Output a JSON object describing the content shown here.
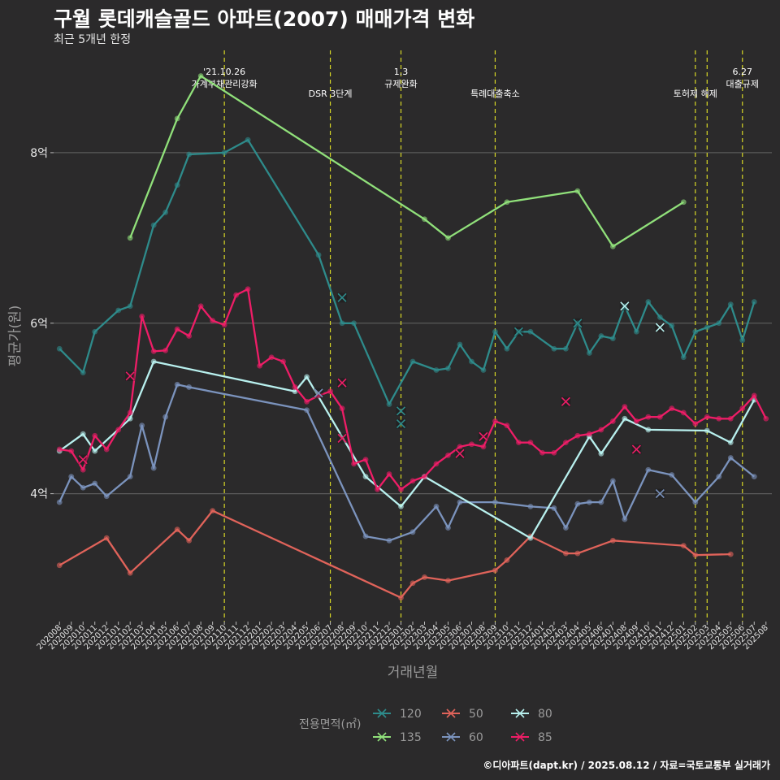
{
  "title": "구월 롯데캐슬골드 아파트(2007) 매매가격 변화",
  "subtitle": "최근 5개년 한정",
  "caption": "©디아파트(dapt.kr) / 2025.08.12 / 자료=국토교통부 실거래가",
  "chart_data": {
    "type": "line",
    "xlabel": "거래년월",
    "ylabel": "평균가(원)",
    "x_months": [
      "202008",
      "202009",
      "202010",
      "202011",
      "202012",
      "202101",
      "202102",
      "202103",
      "202104",
      "202105",
      "202106",
      "202107",
      "202108",
      "202109",
      "202110",
      "202111",
      "202112",
      "202201",
      "202202",
      "202203",
      "202204",
      "202205",
      "202206",
      "202207",
      "202208",
      "202209",
      "202210",
      "202211",
      "202212",
      "202301",
      "202302",
      "202303",
      "202304",
      "202305",
      "202306",
      "202307",
      "202308",
      "202309",
      "202310",
      "202311",
      "202312",
      "202401",
      "202402",
      "202403",
      "202404",
      "202405",
      "202406",
      "202407",
      "202408",
      "202409",
      "202410",
      "202411",
      "202412",
      "202501",
      "202502",
      "202503",
      "202504",
      "202505",
      "202506",
      "202507",
      "202508"
    ],
    "yticks": [
      {
        "value": 4.0,
        "label": "4억"
      },
      {
        "value": 6.0,
        "label": "6억"
      },
      {
        "value": 8.0,
        "label": "8억"
      }
    ],
    "ylim": [
      2.5,
      9.2
    ],
    "grid": true,
    "legend_title": "전용면적(㎡)",
    "legend_position": "bottom",
    "events": [
      {
        "month": "202110",
        "label": "'21.10.26\n가계부채관리강화"
      },
      {
        "month": "202207",
        "label": "DSR 3단계"
      },
      {
        "month": "202301",
        "label": "1.3\n규제완화"
      },
      {
        "month": "202309",
        "label": "특례대출축소"
      },
      {
        "month": "202502",
        "label": "토허제 해제"
      },
      {
        "month": "202503",
        "label": ""
      },
      {
        "month": "202506",
        "label": "6.27\n대출규제"
      }
    ],
    "series": [
      {
        "name": "120",
        "color": "#2e8b8b",
        "points": [
          [
            "202008",
            5.7
          ],
          [
            "202010",
            5.42
          ],
          [
            "202011",
            5.9
          ],
          [
            "202101",
            6.15
          ],
          [
            "202102",
            6.2
          ],
          [
            "202104",
            7.15
          ],
          [
            "202105",
            7.3
          ],
          [
            "202106",
            7.62
          ],
          [
            "202107",
            7.98
          ],
          [
            "202110",
            8.0
          ],
          [
            "202112",
            8.15
          ],
          [
            "202206",
            6.8
          ],
          [
            "202208",
            6.0
          ],
          [
            "202209",
            6.0
          ],
          [
            "202212",
            5.05
          ],
          [
            "202302",
            5.55
          ],
          [
            "202304",
            5.45
          ],
          [
            "202305",
            5.47
          ],
          [
            "202306",
            5.75
          ],
          [
            "202307",
            5.55
          ],
          [
            "202308",
            5.45
          ],
          [
            "202309",
            5.9
          ],
          [
            "202310",
            5.7
          ],
          [
            "202311",
            5.9
          ],
          [
            "202312",
            5.9
          ],
          [
            "202402",
            5.7
          ],
          [
            "202403",
            5.7
          ],
          [
            "202404",
            6.0
          ],
          [
            "202405",
            5.65
          ],
          [
            "202406",
            5.85
          ],
          [
            "202407",
            5.82
          ],
          [
            "202408",
            6.2
          ],
          [
            "202409",
            5.9
          ],
          [
            "202410",
            6.25
          ],
          [
            "202411",
            6.07
          ],
          [
            "202412",
            5.97
          ],
          [
            "202501",
            5.6
          ],
          [
            "202502",
            5.9
          ],
          [
            "202503",
            5.95
          ],
          [
            "202504",
            6.0
          ],
          [
            "202505",
            6.22
          ],
          [
            "202506",
            5.8
          ],
          [
            "202507",
            6.25
          ]
        ]
      },
      {
        "name": "135",
        "color": "#90e07a",
        "points": [
          [
            "202102",
            7.0
          ],
          [
            "202106",
            8.4
          ],
          [
            "202108",
            8.9
          ],
          [
            "202303",
            7.22
          ],
          [
            "202305",
            7.0
          ],
          [
            "202310",
            7.42
          ],
          [
            "202404",
            7.55
          ],
          [
            "202407",
            6.9
          ],
          [
            "202501",
            7.42
          ]
        ]
      },
      {
        "name": "50",
        "color": "#e0635a",
        "points": [
          [
            "202008",
            3.16
          ],
          [
            "202012",
            3.48
          ],
          [
            "202102",
            3.07
          ],
          [
            "202106",
            3.58
          ],
          [
            "202107",
            3.45
          ],
          [
            "202109",
            3.8
          ],
          [
            "202301",
            2.78
          ],
          [
            "202302",
            2.95
          ],
          [
            "202303",
            3.02
          ],
          [
            "202305",
            2.98
          ],
          [
            "202309",
            3.1
          ],
          [
            "202310",
            3.22
          ],
          [
            "202312",
            3.5
          ],
          [
            "202403",
            3.3
          ],
          [
            "202404",
            3.3
          ],
          [
            "202407",
            3.45
          ],
          [
            "202501",
            3.39
          ],
          [
            "202502",
            3.28
          ],
          [
            "202505",
            3.29
          ]
        ]
      },
      {
        "name": "60",
        "color": "#7b93bd",
        "points": [
          [
            "202008",
            3.9
          ],
          [
            "202009",
            4.2
          ],
          [
            "202010",
            4.07
          ],
          [
            "202011",
            4.12
          ],
          [
            "202012",
            3.97
          ],
          [
            "202102",
            4.2
          ],
          [
            "202103",
            4.8
          ],
          [
            "202104",
            4.3
          ],
          [
            "202105",
            4.9
          ],
          [
            "202106",
            5.28
          ],
          [
            "202107",
            5.25
          ],
          [
            "202205",
            4.98
          ],
          [
            "202210",
            3.5
          ],
          [
            "202212",
            3.45
          ],
          [
            "202302",
            3.55
          ],
          [
            "202304",
            3.85
          ],
          [
            "202305",
            3.6
          ],
          [
            "202306",
            3.9
          ],
          [
            "202309",
            3.9
          ],
          [
            "202312",
            3.85
          ],
          [
            "202402",
            3.83
          ],
          [
            "202403",
            3.6
          ],
          [
            "202404",
            3.88
          ],
          [
            "202405",
            3.9
          ],
          [
            "202406",
            3.9
          ],
          [
            "202407",
            4.15
          ],
          [
            "202408",
            3.7
          ],
          [
            "202410",
            4.28
          ],
          [
            "202412",
            4.22
          ],
          [
            "202502",
            3.9
          ],
          [
            "202504",
            4.2
          ],
          [
            "202505",
            4.42
          ],
          [
            "202507",
            4.2
          ]
        ]
      },
      {
        "name": "80",
        "color": "#b8f0ee",
        "points": [
          [
            "202008",
            4.5
          ],
          [
            "202010",
            4.7
          ],
          [
            "202011",
            4.5
          ],
          [
            "202102",
            4.88
          ],
          [
            "202104",
            5.55
          ],
          [
            "202204",
            5.2
          ],
          [
            "202205",
            5.37
          ],
          [
            "202210",
            4.2
          ],
          [
            "202301",
            3.85
          ],
          [
            "202303",
            4.2
          ],
          [
            "202312",
            3.48
          ],
          [
            "202405",
            4.67
          ],
          [
            "202406",
            4.47
          ],
          [
            "202408",
            4.88
          ],
          [
            "202410",
            4.75
          ],
          [
            "202503",
            4.74
          ],
          [
            "202505",
            4.6
          ],
          [
            "202507",
            5.1
          ]
        ]
      },
      {
        "name": "85",
        "color": "#ee1d67",
        "points": [
          [
            "202008",
            4.52
          ],
          [
            "202009",
            4.5
          ],
          [
            "202010",
            4.28
          ],
          [
            "202011",
            4.68
          ],
          [
            "202012",
            4.52
          ],
          [
            "202101",
            4.75
          ],
          [
            "202102",
            4.95
          ],
          [
            "202103",
            6.08
          ],
          [
            "202104",
            5.67
          ],
          [
            "202105",
            5.68
          ],
          [
            "202106",
            5.93
          ],
          [
            "202107",
            5.85
          ],
          [
            "202108",
            6.2
          ],
          [
            "202109",
            6.03
          ],
          [
            "202110",
            5.98
          ],
          [
            "202111",
            6.33
          ],
          [
            "202112",
            6.4
          ],
          [
            "202201",
            5.5
          ],
          [
            "202202",
            5.6
          ],
          [
            "202203",
            5.55
          ],
          [
            "202204",
            5.25
          ],
          [
            "202205",
            5.08
          ],
          [
            "202206",
            5.15
          ],
          [
            "202207",
            5.2
          ],
          [
            "202208",
            5.0
          ],
          [
            "202209",
            4.35
          ],
          [
            "202210",
            4.4
          ],
          [
            "202211",
            4.05
          ],
          [
            "202212",
            4.23
          ],
          [
            "202301",
            4.05
          ],
          [
            "202302",
            4.15
          ],
          [
            "202303",
            4.2
          ],
          [
            "202304",
            4.35
          ],
          [
            "202305",
            4.45
          ],
          [
            "202306",
            4.55
          ],
          [
            "202307",
            4.58
          ],
          [
            "202308",
            4.55
          ],
          [
            "202309",
            4.85
          ],
          [
            "202310",
            4.8
          ],
          [
            "202311",
            4.6
          ],
          [
            "202312",
            4.6
          ],
          [
            "202401",
            4.48
          ],
          [
            "202402",
            4.48
          ],
          [
            "202403",
            4.6
          ],
          [
            "202404",
            4.68
          ],
          [
            "202405",
            4.7
          ],
          [
            "202406",
            4.75
          ],
          [
            "202407",
            4.85
          ],
          [
            "202408",
            5.02
          ],
          [
            "202409",
            4.85
          ],
          [
            "202410",
            4.9
          ],
          [
            "202411",
            4.9
          ],
          [
            "202412",
            5.0
          ],
          [
            "202501",
            4.95
          ],
          [
            "202502",
            4.82
          ],
          [
            "202503",
            4.9
          ],
          [
            "202504",
            4.88
          ],
          [
            "202505",
            4.88
          ],
          [
            "202506",
            5.0
          ],
          [
            "202507",
            5.15
          ],
          [
            "202508",
            4.88
          ]
        ]
      }
    ],
    "crossed_markers": [
      {
        "series": "120",
        "month": "202311",
        "value": 5.9
      },
      {
        "series": "120",
        "month": "202404",
        "value": 6.0
      },
      {
        "series": "120",
        "month": "202208",
        "value": 6.3
      },
      {
        "series": "120",
        "month": "202301",
        "value": 4.97
      },
      {
        "series": "120",
        "month": "202301",
        "value": 4.82
      },
      {
        "series": "60",
        "month": "202206",
        "value": 5.18
      },
      {
        "series": "60",
        "month": "202411",
        "value": 4.0
      },
      {
        "series": "80",
        "month": "202408",
        "value": 6.2
      },
      {
        "series": "80",
        "month": "202411",
        "value": 5.95
      },
      {
        "series": "85",
        "month": "202102",
        "value": 5.38
      },
      {
        "series": "85",
        "month": "202208",
        "value": 5.3
      },
      {
        "series": "85",
        "month": "202208",
        "value": 4.65
      },
      {
        "series": "85",
        "month": "202306",
        "value": 4.47
      },
      {
        "series": "85",
        "month": "202308",
        "value": 4.67
      },
      {
        "series": "85",
        "month": "202403",
        "value": 5.08
      },
      {
        "series": "85",
        "month": "202409",
        "value": 4.52
      },
      {
        "series": "85",
        "month": "202010",
        "value": 4.4
      }
    ]
  }
}
